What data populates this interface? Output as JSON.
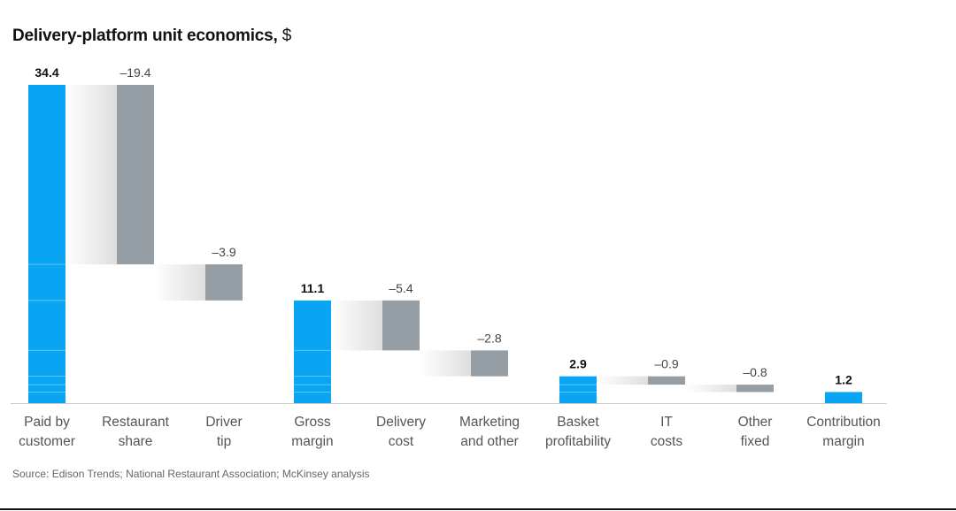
{
  "chart_data": {
    "type": "bar",
    "title": "Delivery-platform unit economics,",
    "title_unit": "$",
    "categories": [
      [
        "Paid by",
        "customer"
      ],
      [
        "Restaurant",
        "share"
      ],
      [
        "Driver",
        "tip"
      ],
      [
        "Gross",
        "margin"
      ],
      [
        "Delivery",
        "cost"
      ],
      [
        "Marketing",
        "and other"
      ],
      [
        "Basket",
        "profitability"
      ],
      [
        "IT",
        "costs"
      ],
      [
        "Other",
        "fixed"
      ],
      [
        "Contribution",
        "margin"
      ]
    ],
    "values": [
      34.4,
      -19.4,
      -3.9,
      11.1,
      -5.4,
      -2.8,
      2.9,
      -0.9,
      -0.8,
      1.2
    ],
    "value_labels": [
      "34.4",
      "–19.4",
      "–3.9",
      "11.1",
      "–5.4",
      "–2.8",
      "2.9",
      "–0.9",
      "–0.8",
      "1.2"
    ],
    "kinds": [
      "total",
      "delta",
      "delta",
      "total",
      "delta",
      "delta",
      "total",
      "delta",
      "delta",
      "total"
    ],
    "ylim": [
      0,
      34.4
    ],
    "colors": {
      "total": "#0aa5f2",
      "delta": "#949ea4",
      "bridge": "#e8e8e8",
      "axis": "#cccccc"
    }
  },
  "source": "Source: Edison Trends; National Restaurant Association; McKinsey analysis"
}
